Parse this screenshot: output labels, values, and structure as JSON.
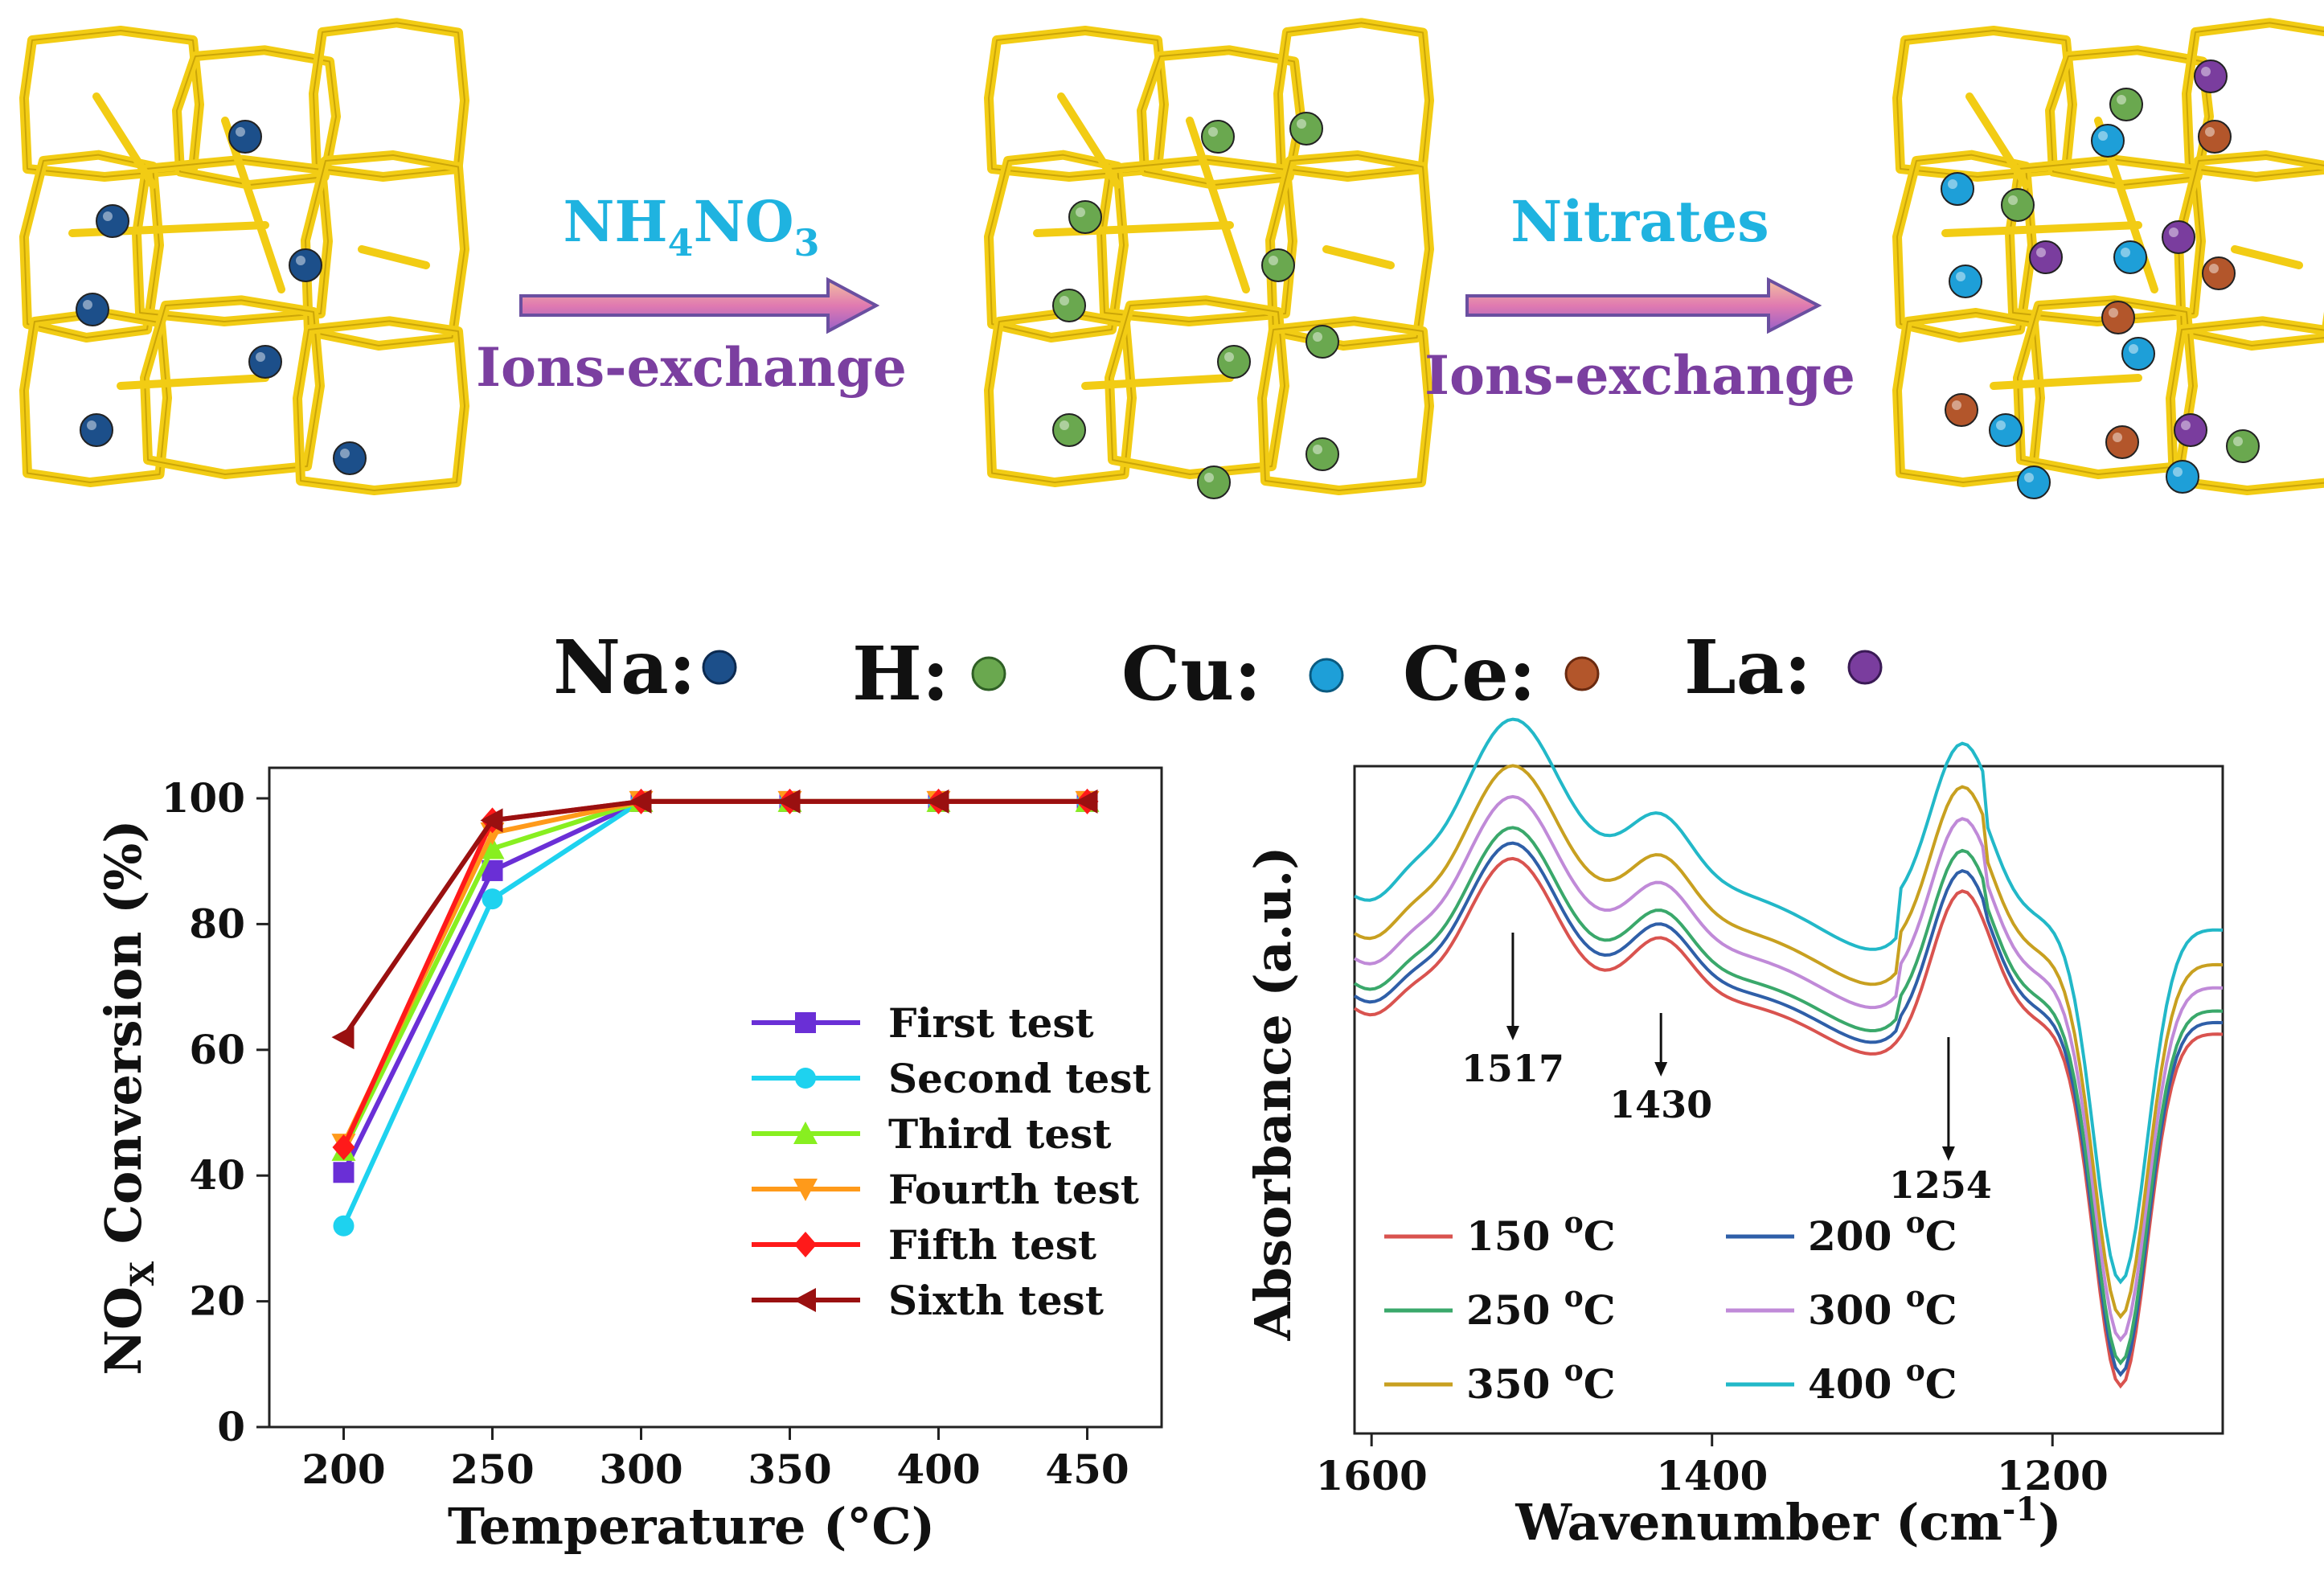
{
  "scheme": {
    "step1": {
      "reagent": "NH",
      "reagent_sub1": "4",
      "reagent_mid": "NO",
      "reagent_sub2": "3",
      "process": "Ions-exchange"
    },
    "step2": {
      "reagent": "Nitrates",
      "process": "Ions-exchange"
    },
    "legend": [
      {
        "label": "Na:",
        "color": "#1c4f8a"
      },
      {
        "label": "H:",
        "color": "#6aa84f"
      },
      {
        "label": "Cu:",
        "color": "#1e9fd8"
      },
      {
        "label": "Ce:",
        "color": "#b3562b"
      },
      {
        "label": "La:",
        "color": "#7a3d9e"
      }
    ],
    "colors": {
      "framework": "#f2cc14",
      "arrow_fill": "#d98ab8",
      "reagent_text": "#1fb3e0",
      "process_text": "#7b3fa0"
    }
  },
  "chart_data": [
    {
      "type": "line",
      "xlabel": "Temperature (°C)",
      "ylabel_pre": "NO",
      "ylabel_sub": "X",
      "ylabel_post": " Conversion (%)",
      "xlim": [
        175,
        475
      ],
      "ylim": [
        0,
        100
      ],
      "xticks": [
        200,
        250,
        300,
        350,
        400,
        450
      ],
      "yticks": [
        0,
        20,
        40,
        60,
        80,
        100
      ],
      "x": [
        200,
        250,
        300,
        350,
        400,
        450
      ],
      "series": [
        {
          "name": "First test",
          "color": "#6a2fd6",
          "marker": "square",
          "values": [
            40.5,
            88.5,
            99.5,
            99.5,
            99.5,
            99.5
          ]
        },
        {
          "name": "Second test",
          "color": "#1ed2ef",
          "marker": "circle",
          "values": [
            32,
            84,
            99.5,
            99.5,
            99.5,
            99.5
          ]
        },
        {
          "name": "Third test",
          "color": "#88ef20",
          "marker": "triangle-up",
          "values": [
            44,
            92,
            99.5,
            99.5,
            99.5,
            99.5
          ]
        },
        {
          "name": "Fourth test",
          "color": "#ff9a1a",
          "marker": "triangle-down",
          "values": [
            45,
            94.5,
            99.5,
            99.5,
            99.5,
            99.5
          ]
        },
        {
          "name": "Fifth test",
          "color": "#ff1a1a",
          "marker": "diamond",
          "values": [
            44.5,
            96.5,
            99.5,
            99.5,
            99.5,
            99.5
          ]
        },
        {
          "name": "Sixth test",
          "color": "#9a1010",
          "marker": "triangle-left",
          "values": [
            62,
            96.5,
            99.5,
            99.5,
            99.5,
            99.5
          ]
        }
      ]
    },
    {
      "type": "line",
      "xlabel_pre": "Wavenumber (cm",
      "xlabel_sup": "-1",
      "xlabel_post": ")",
      "ylabel": "Absorbance (a.u.)",
      "xlim": [
        1610,
        1100
      ],
      "xticks": [
        1600,
        1400,
        1200
      ],
      "annotations": [
        {
          "label": "1517",
          "x": 1517
        },
        {
          "label": "1430",
          "x": 1430
        },
        {
          "label": "1254",
          "x": 1254
        }
      ],
      "series": [
        {
          "name": "150",
          "unit_sup": "o",
          "unit": "C",
          "color": "#d9534f",
          "offset": 0
        },
        {
          "name": "200",
          "unit_sup": "o",
          "unit": "C",
          "color": "#2f5fa8",
          "offset": 2
        },
        {
          "name": "250",
          "unit_sup": "o",
          "unit": "C",
          "color": "#3aa86b",
          "offset": 4
        },
        {
          "name": "300",
          "unit_sup": "o",
          "unit": "C",
          "color": "#c08ad8",
          "offset": 8
        },
        {
          "name": "350",
          "unit_sup": "o",
          "unit": "C",
          "color": "#c8a020",
          "offset": 12
        },
        {
          "name": "400",
          "unit_sup": "o",
          "unit": "C",
          "color": "#22b8c8",
          "offset": 18
        }
      ]
    }
  ]
}
